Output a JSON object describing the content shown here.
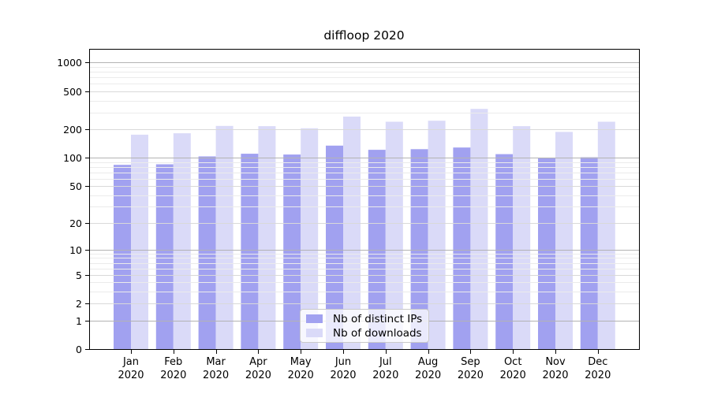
{
  "chart_data": {
    "type": "bar",
    "title": "diffloop 2020",
    "categories": [
      "Jan 2020",
      "Feb 2020",
      "Mar 2020",
      "Apr 2020",
      "May 2020",
      "Jun 2020",
      "Jul 2020",
      "Aug 2020",
      "Sep 2020",
      "Oct 2020",
      "Nov 2020",
      "Dec 2020"
    ],
    "series": [
      {
        "name": "Nb of distinct IPs",
        "color": "#a1a1f0",
        "values": [
          84,
          85,
          103,
          110,
          108,
          134,
          121,
          123,
          128,
          109,
          99,
          101
        ]
      },
      {
        "name": "Nb of downloads",
        "color": "#dadaf8",
        "values": [
          175,
          181,
          216,
          215,
          204,
          271,
          239,
          245,
          326,
          215,
          187,
          239
        ]
      }
    ],
    "y_ticks": [
      0,
      1,
      2,
      5,
      10,
      20,
      50,
      100,
      200,
      500,
      1000
    ],
    "y_scale": "log10(1+x)",
    "ylim": [
      0,
      1391
    ],
    "grid": true,
    "legend_position": "inside-bottom-center"
  }
}
